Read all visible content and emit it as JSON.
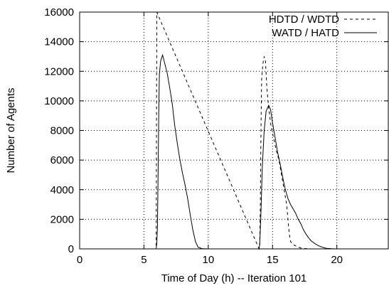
{
  "chart_data": {
    "type": "line",
    "title": "",
    "xlabel": "Time of Day (h) -- Iteration 101",
    "ylabel": "Number of Agents",
    "xlim": [
      0,
      24
    ],
    "ylim": [
      0,
      16000
    ],
    "xticks": [
      0,
      5,
      10,
      15,
      20
    ],
    "yticks": [
      0,
      2000,
      4000,
      6000,
      8000,
      10000,
      12000,
      14000,
      16000
    ],
    "grid": true,
    "legend_position": "top-right",
    "series": [
      {
        "name": "HDTD / WDTD",
        "style": "dashed",
        "points": [
          [
            0,
            0
          ],
          [
            5.95,
            0
          ],
          [
            6.0,
            16000
          ],
          [
            13.95,
            0
          ],
          [
            14.0,
            300
          ],
          [
            14.05,
            3000
          ],
          [
            14.1,
            8000
          ],
          [
            14.15,
            11500
          ],
          [
            14.25,
            12500
          ],
          [
            14.35,
            13000
          ],
          [
            14.45,
            12700
          ],
          [
            14.55,
            11000
          ],
          [
            14.7,
            9500
          ],
          [
            14.9,
            8200
          ],
          [
            15.1,
            7400
          ],
          [
            15.3,
            6600
          ],
          [
            15.5,
            6000
          ],
          [
            15.7,
            5000
          ],
          [
            15.9,
            4000
          ],
          [
            16.1,
            3000
          ],
          [
            16.2,
            2000
          ],
          [
            16.3,
            1000
          ],
          [
            16.4,
            500
          ],
          [
            16.6,
            300
          ],
          [
            16.9,
            150
          ],
          [
            17.2,
            60
          ],
          [
            17.6,
            20
          ],
          [
            18.0,
            0
          ],
          [
            24,
            0
          ]
        ]
      },
      {
        "name": "WATD / HATD",
        "style": "solid",
        "points": [
          [
            0,
            0
          ],
          [
            5.95,
            0
          ],
          [
            6.0,
            400
          ],
          [
            6.05,
            1500
          ],
          [
            6.1,
            5000
          ],
          [
            6.15,
            9000
          ],
          [
            6.2,
            11800
          ],
          [
            6.3,
            12700
          ],
          [
            6.45,
            13100
          ],
          [
            6.6,
            12600
          ],
          [
            6.8,
            11900
          ],
          [
            7.0,
            10900
          ],
          [
            7.2,
            9800
          ],
          [
            7.4,
            8300
          ],
          [
            7.6,
            7100
          ],
          [
            7.8,
            6000
          ],
          [
            8.0,
            5100
          ],
          [
            8.2,
            4300
          ],
          [
            8.4,
            3400
          ],
          [
            8.6,
            2300
          ],
          [
            8.8,
            1300
          ],
          [
            9.0,
            500
          ],
          [
            9.2,
            120
          ],
          [
            9.5,
            20
          ],
          [
            10.0,
            0
          ],
          [
            13.95,
            0
          ],
          [
            14.0,
            300
          ],
          [
            14.1,
            2500
          ],
          [
            14.2,
            5500
          ],
          [
            14.35,
            8000
          ],
          [
            14.5,
            9300
          ],
          [
            14.7,
            9700
          ],
          [
            14.85,
            9400
          ],
          [
            15.0,
            8500
          ],
          [
            15.2,
            7500
          ],
          [
            15.4,
            6500
          ],
          [
            15.6,
            5700
          ],
          [
            15.8,
            4800
          ],
          [
            16.0,
            4000
          ],
          [
            16.2,
            3400
          ],
          [
            16.4,
            3000
          ],
          [
            16.6,
            2700
          ],
          [
            16.8,
            2400
          ],
          [
            17.0,
            2000
          ],
          [
            17.2,
            1700
          ],
          [
            17.4,
            1300
          ],
          [
            17.6,
            1000
          ],
          [
            17.8,
            750
          ],
          [
            18.0,
            550
          ],
          [
            18.3,
            350
          ],
          [
            18.6,
            200
          ],
          [
            18.9,
            100
          ],
          [
            19.2,
            40
          ],
          [
            19.6,
            10
          ],
          [
            20.0,
            0
          ],
          [
            24,
            0
          ]
        ]
      }
    ]
  }
}
